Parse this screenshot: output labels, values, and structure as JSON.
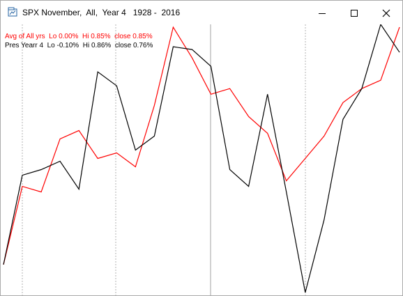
{
  "window": {
    "title": "SPX November,  All,  Year 4   1928 -  2016",
    "icon": "chart-window-icon",
    "controls": [
      "minimize-icon",
      "maximize-icon",
      "close-icon"
    ]
  },
  "legend": {
    "avg_line": "Avg of All yrs  Lo 0.00%  Hi 0.85%  close 0.85%",
    "pres_line": "Pres Yearr 4  Lo -0.10%  Hi 0.86%  close 0.76%"
  },
  "colors": {
    "avg": "#ff0000",
    "pres": "#000000",
    "grid": "#b0b0b0",
    "midline": "#a0a0a0"
  },
  "chart_data": {
    "type": "line",
    "grid": "vertical dashed lines",
    "legend_placement": "top-left",
    "series": [
      {
        "name": "Avg of All yrs",
        "values": [
          0.0,
          0.28,
          0.26,
          0.45,
          0.48,
          0.38,
          0.4,
          0.35,
          0.57,
          0.85,
          0.74,
          0.61,
          0.63,
          0.53,
          0.47,
          0.3,
          0.38,
          0.46,
          0.58,
          0.63,
          0.66,
          0.85
        ]
      },
      {
        "name": "Pres Yearr 4",
        "values": [
          0.0,
          0.32,
          0.34,
          0.37,
          0.27,
          0.69,
          0.64,
          0.41,
          0.46,
          0.78,
          0.77,
          0.71,
          0.34,
          0.28,
          0.61,
          0.26,
          -0.1,
          0.16,
          0.52,
          0.63,
          0.86,
          0.76
        ]
      }
    ],
    "ylim": [
      -0.1,
      0.86
    ]
  }
}
